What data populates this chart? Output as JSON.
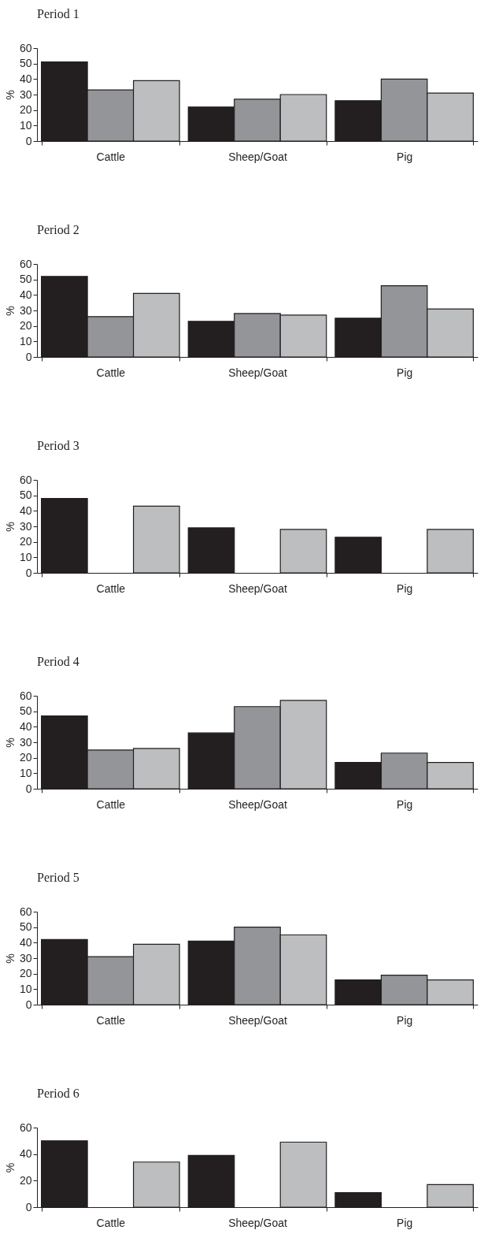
{
  "chart_data": [
    {
      "type": "bar",
      "title": "Period 1",
      "ylabel": "%",
      "categories": [
        "Cattle",
        "Sheep/Goat",
        "Pig"
      ],
      "ylim": [
        0,
        60
      ],
      "yticks": [
        0,
        10,
        20,
        30,
        40,
        50,
        60
      ],
      "series": [
        {
          "color": "#231f20",
          "values": [
            51,
            22,
            26
          ]
        },
        {
          "color": "#939598",
          "values": [
            33,
            27,
            40
          ]
        },
        {
          "color": "#bcbec0",
          "values": [
            39,
            30,
            31
          ]
        }
      ]
    },
    {
      "type": "bar",
      "title": "Period 2",
      "ylabel": "%",
      "categories": [
        "Cattle",
        "Sheep/Goat",
        "Pig"
      ],
      "ylim": [
        0,
        60
      ],
      "yticks": [
        0,
        10,
        20,
        30,
        40,
        50,
        60
      ],
      "series": [
        {
          "color": "#231f20",
          "values": [
            52,
            23,
            25
          ]
        },
        {
          "color": "#939598",
          "values": [
            26,
            28,
            46
          ]
        },
        {
          "color": "#bcbec0",
          "values": [
            41,
            27,
            31
          ]
        }
      ]
    },
    {
      "type": "bar",
      "title": "Period 3",
      "ylabel": "%",
      "categories": [
        "Cattle",
        "Sheep/Goat",
        "Pig"
      ],
      "ylim": [
        0,
        60
      ],
      "yticks": [
        0,
        10,
        20,
        30,
        40,
        50,
        60
      ],
      "series": [
        {
          "color": "#231f20",
          "values": [
            48,
            29,
            23
          ]
        },
        {
          "color": "#939598",
          "values": [
            null,
            null,
            null
          ]
        },
        {
          "color": "#bcbec0",
          "values": [
            43,
            28,
            28
          ]
        }
      ]
    },
    {
      "type": "bar",
      "title": "Period 4",
      "ylabel": "%",
      "categories": [
        "Cattle",
        "Sheep/Goat",
        "Pig"
      ],
      "ylim": [
        0,
        60
      ],
      "yticks": [
        0,
        10,
        20,
        30,
        40,
        50,
        60
      ],
      "series": [
        {
          "color": "#231f20",
          "values": [
            47,
            36,
            17
          ]
        },
        {
          "color": "#939598",
          "values": [
            25,
            53,
            23
          ]
        },
        {
          "color": "#bcbec0",
          "values": [
            26,
            57,
            17
          ]
        }
      ]
    },
    {
      "type": "bar",
      "title": "Period 5",
      "ylabel": "%",
      "categories": [
        "Cattle",
        "Sheep/Goat",
        "Pig"
      ],
      "ylim": [
        0,
        60
      ],
      "yticks": [
        0,
        10,
        20,
        30,
        40,
        50,
        60
      ],
      "series": [
        {
          "color": "#231f20",
          "values": [
            42,
            41,
            16
          ]
        },
        {
          "color": "#939598",
          "values": [
            31,
            50,
            19
          ]
        },
        {
          "color": "#bcbec0",
          "values": [
            39,
            45,
            16
          ]
        }
      ]
    },
    {
      "type": "bar",
      "title": "Period 6",
      "ylabel": "%",
      "categories": [
        "Cattle",
        "Sheep/Goat",
        "Pig"
      ],
      "ylim": [
        0,
        60
      ],
      "yticks": [
        0,
        20,
        40,
        60
      ],
      "series": [
        {
          "color": "#231f20",
          "values": [
            50,
            39,
            11
          ]
        },
        {
          "color": "#939598",
          "values": [
            null,
            null,
            null
          ]
        },
        {
          "color": "#bcbec0",
          "values": [
            34,
            49,
            17
          ]
        }
      ]
    }
  ]
}
